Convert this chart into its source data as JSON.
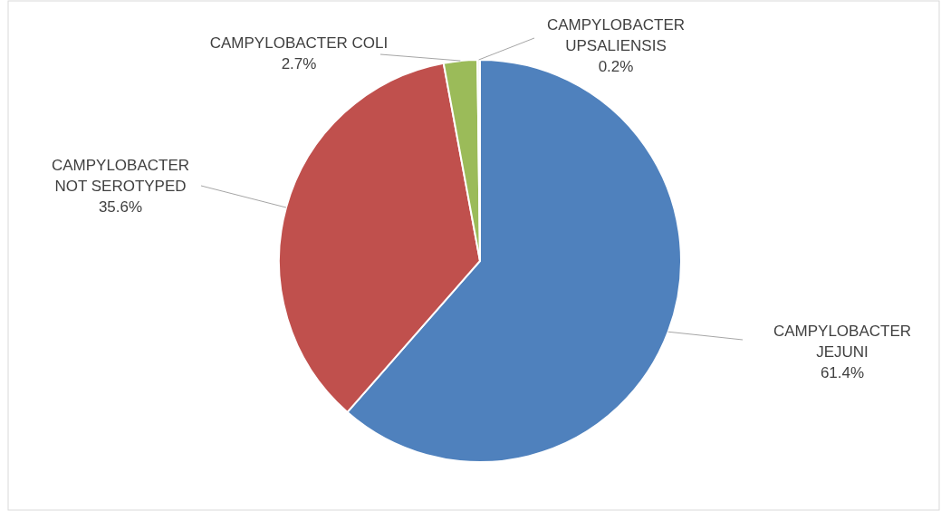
{
  "chart_data": {
    "type": "pie",
    "categories": [
      "CAMPYLOBACTER JEJUNI",
      "CAMPYLOBACTER NOT SEROTYPED",
      "CAMPYLOBACTER COLI",
      "CAMPYLOBACTER UPSALIENSIS"
    ],
    "values": [
      61.4,
      35.6,
      2.7,
      0.2
    ],
    "colors": [
      "#4f81bd",
      "#c0504d",
      "#9bbb59",
      "#f2f2f2"
    ],
    "value_labels": [
      "61.4%",
      "35.6%",
      "2.7%",
      "0.2%"
    ]
  }
}
